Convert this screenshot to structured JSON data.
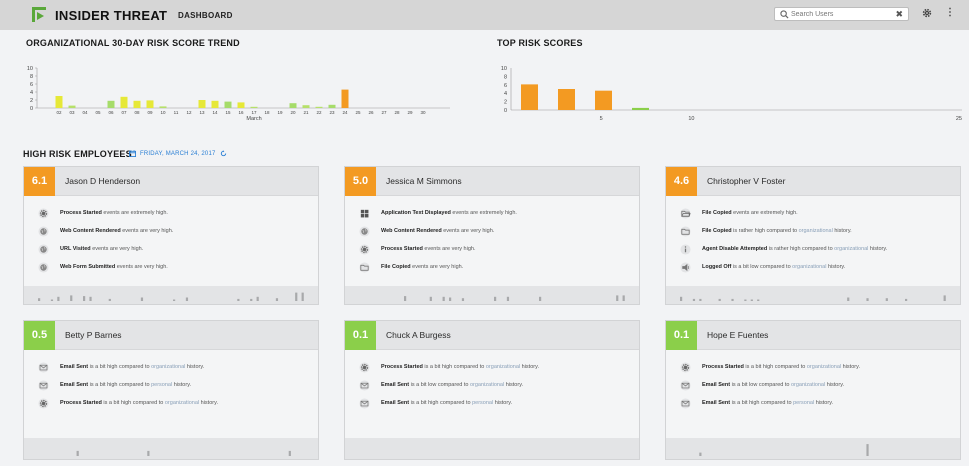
{
  "header": {
    "app_title": "INSIDER THREAT",
    "nav_label": "DASHBOARD",
    "search_placeholder": "Search Users",
    "clear_glyph": "✖",
    "menu_glyph": "⋮",
    "icons": [
      "logo-icon",
      "search-icon",
      "clear-icon",
      "gear-icon",
      "kebab-menu-icon"
    ]
  },
  "trend": {
    "title": "ORGANIZATIONAL 30-DAY RISK SCORE TREND",
    "chart_data": {
      "type": "bar",
      "xlabel": "March",
      "ylim": [
        0,
        10
      ],
      "yticks": [
        0,
        2,
        4,
        6,
        8,
        10
      ],
      "categories": [
        "02",
        "03",
        "04",
        "05",
        "06",
        "07",
        "08",
        "09",
        "10",
        "11",
        "12",
        "13",
        "14",
        "15",
        "16",
        "17",
        "18",
        "19",
        "20",
        "21",
        "22",
        "23",
        "24",
        "25",
        "26",
        "27",
        "28",
        "29",
        "30"
      ],
      "values": [
        3.0,
        0.6,
        0,
        0,
        1.8,
        2.8,
        1.8,
        1.9,
        0.4,
        0,
        0,
        2.0,
        1.8,
        1.6,
        1.4,
        0.3,
        0,
        0,
        1.2,
        0.7,
        0.3,
        0.8,
        4.6,
        0,
        0,
        0,
        0,
        0,
        0
      ],
      "colors": [
        "#e6e838",
        "#b6e06a",
        "#e6e838",
        "#e6e838",
        "#a6dc6a",
        "#e6e838",
        "#e6e838",
        "#e6e838",
        "#b6e06a",
        "#e6e838",
        "#e6e838",
        "#e6e838",
        "#e6e838",
        "#a6dc6a",
        "#e6e838",
        "#b6e06a",
        "#e6e838",
        "#e6e838",
        "#a6dc6a",
        "#b6e06a",
        "#b6e06a",
        "#a6dc6a",
        "#f39a22",
        "#e6e838",
        "#e6e838",
        "#e6e838",
        "#e6e838",
        "#e6e838",
        "#e6e838"
      ]
    }
  },
  "top": {
    "title": "TOP RISK SCORES",
    "chart_data": {
      "type": "bar",
      "xlim": [
        0,
        25
      ],
      "xticks": [
        5,
        10,
        25
      ],
      "ylim": [
        0,
        10
      ],
      "yticks": [
        0,
        2,
        4,
        6,
        8,
        10
      ],
      "values": [
        6.1,
        5.0,
        4.6,
        0.5
      ],
      "colors": [
        "#f39a22",
        "#f39a22",
        "#f39a22",
        "#8bcf4a"
      ]
    }
  },
  "employees_section": {
    "title": "HIGH RISK EMPLOYEES",
    "date": "FRIDAY, MARCH 24, 2017"
  },
  "cards": [
    {
      "score": "6.1",
      "color": "#f39a22",
      "name": "Jason D Henderson",
      "events": [
        {
          "icon": "gear-icon",
          "bold": "Process Started",
          "rest": " events are extremely high.",
          "hist": "",
          "tail": ""
        },
        {
          "icon": "globe-icon",
          "bold": "Web Content Rendered",
          "rest": " events are very high.",
          "hist": "",
          "tail": ""
        },
        {
          "icon": "globe-icon",
          "bold": "URL Visited",
          "rest": " events are very high.",
          "hist": "",
          "tail": ""
        },
        {
          "icon": "globe-icon",
          "bold": "Web Form Submitted",
          "rest": " events are very high.",
          "hist": "",
          "tail": ""
        }
      ],
      "spark": [
        0.2,
        0,
        0.1,
        0.3,
        0,
        0.4,
        0,
        0.35,
        0.3,
        0,
        0,
        0.15,
        0,
        0,
        0,
        0,
        0.25,
        0,
        0,
        0,
        0,
        0.1,
        0,
        0.25,
        0,
        0,
        0,
        0,
        0,
        0,
        0,
        0.15,
        0,
        0.15,
        0.3,
        0,
        0,
        0.2,
        0,
        0,
        0.6,
        0.6
      ]
    },
    {
      "score": "5.0",
      "color": "#f39a22",
      "name": "Jessica M Simmons",
      "events": [
        {
          "icon": "grid-icon",
          "bold": "Application Text Displayed",
          "rest": " events are extremely high.",
          "hist": "",
          "tail": ""
        },
        {
          "icon": "globe-icon",
          "bold": "Web Content Rendered",
          "rest": " events are very high.",
          "hist": "",
          "tail": ""
        },
        {
          "icon": "gear-icon",
          "bold": "Process Started",
          "rest": " events are very high.",
          "hist": "",
          "tail": ""
        },
        {
          "icon": "folder-icon",
          "bold": "File Copied",
          "rest": " events are very high.",
          "hist": "",
          "tail": ""
        }
      ],
      "spark": [
        0,
        0,
        0,
        0,
        0,
        0,
        0,
        0.35,
        0,
        0,
        0,
        0.3,
        0,
        0.3,
        0.25,
        0,
        0.2,
        0,
        0,
        0,
        0,
        0.3,
        0,
        0.3,
        0,
        0,
        0,
        0,
        0.3,
        0,
        0,
        0,
        0,
        0,
        0,
        0,
        0,
        0,
        0,
        0,
        0.4,
        0.4
      ]
    },
    {
      "score": "4.6",
      "color": "#f39a22",
      "name": "Christopher V Foster",
      "events": [
        {
          "icon": "folder-open-icon",
          "bold": "File Copied",
          "rest": " events are extremely high.",
          "hist": "",
          "tail": ""
        },
        {
          "icon": "folder-icon",
          "bold": "File Copied",
          "rest": " is rather high compared to ",
          "hist": "organizational",
          "tail": " history."
        },
        {
          "icon": "info-icon",
          "bold": "Agent Disable Attempted",
          "rest": " is rather high compared to ",
          "hist": "organizational",
          "tail": " history."
        },
        {
          "icon": "logout-icon",
          "bold": "Logged Off",
          "rest": " is a bit low compared to ",
          "hist": "organizational",
          "tail": " history."
        }
      ],
      "spark": [
        0.3,
        0,
        0.15,
        0.15,
        0,
        0,
        0.15,
        0,
        0.15,
        0,
        0.1,
        0.1,
        0.1,
        0,
        0,
        0,
        0,
        0,
        0,
        0,
        0,
        0,
        0,
        0,
        0,
        0,
        0.25,
        0,
        0,
        0.2,
        0,
        0,
        0.2,
        0,
        0,
        0.15,
        0,
        0,
        0,
        0,
        0,
        0.4
      ]
    },
    {
      "score": "0.5",
      "color": "#8bcf4a",
      "name": "Betty P Barnes",
      "events": [
        {
          "icon": "envelope-icon",
          "bold": "Email Sent",
          "rest": " is a bit high compared to ",
          "hist": "organizational",
          "tail": " history."
        },
        {
          "icon": "envelope-icon",
          "bold": "Email Sent",
          "rest": " is a bit high compared to ",
          "hist": "personal",
          "tail": " history."
        },
        {
          "icon": "gear-icon",
          "bold": "Process Started",
          "rest": " is a bit high compared to ",
          "hist": "organizational",
          "tail": " history."
        }
      ],
      "spark": [
        0,
        0,
        0,
        0,
        0,
        0,
        0.3,
        0,
        0,
        0,
        0,
        0,
        0,
        0,
        0,
        0,
        0,
        0.3,
        0,
        0,
        0,
        0,
        0,
        0,
        0,
        0,
        0,
        0,
        0,
        0,
        0,
        0,
        0,
        0,
        0,
        0,
        0,
        0,
        0,
        0.3,
        0,
        0
      ]
    },
    {
      "score": "0.1",
      "color": "#8bcf4a",
      "name": "Chuck A Burgess",
      "events": [
        {
          "icon": "gear-icon",
          "bold": "Process Started",
          "rest": " is a bit high compared to ",
          "hist": "organizational",
          "tail": " history."
        },
        {
          "icon": "envelope-icon",
          "bold": "Email Sent",
          "rest": " is a bit low compared to ",
          "hist": "organizational",
          "tail": " history."
        },
        {
          "icon": "envelope-icon",
          "bold": "Email Sent",
          "rest": " is a bit high compared to ",
          "hist": "personal",
          "tail": " history."
        }
      ],
      "spark": [
        0,
        0,
        0,
        0,
        0,
        0,
        0,
        0,
        0,
        0,
        0,
        0,
        0,
        0,
        0,
        0,
        0,
        0,
        0,
        0,
        0,
        0,
        0,
        0,
        0,
        0,
        0,
        0,
        0,
        0,
        0,
        0,
        0,
        0,
        0,
        0,
        0,
        0,
        0,
        0,
        0,
        0
      ]
    },
    {
      "score": "0.1",
      "color": "#8bcf4a",
      "name": "Hope E Fuentes",
      "events": [
        {
          "icon": "gear-icon",
          "bold": "Process Started",
          "rest": " is a bit high compared to ",
          "hist": "organizational",
          "tail": " history."
        },
        {
          "icon": "envelope-icon",
          "bold": "Email Sent",
          "rest": " is a bit low compared to ",
          "hist": "organizational",
          "tail": " history."
        },
        {
          "icon": "envelope-icon",
          "bold": "Email Sent",
          "rest": " is a bit high compared to ",
          "hist": "personal",
          "tail": " history."
        }
      ],
      "spark": [
        0,
        0,
        0,
        0.2,
        0,
        0,
        0,
        0,
        0,
        0,
        0,
        0,
        0,
        0,
        0,
        0,
        0,
        0,
        0,
        0,
        0,
        0,
        0,
        0,
        0,
        0,
        0,
        0,
        0,
        0.7,
        0,
        0,
        0,
        0,
        0,
        0,
        0,
        0,
        0,
        0,
        0,
        0
      ]
    }
  ]
}
